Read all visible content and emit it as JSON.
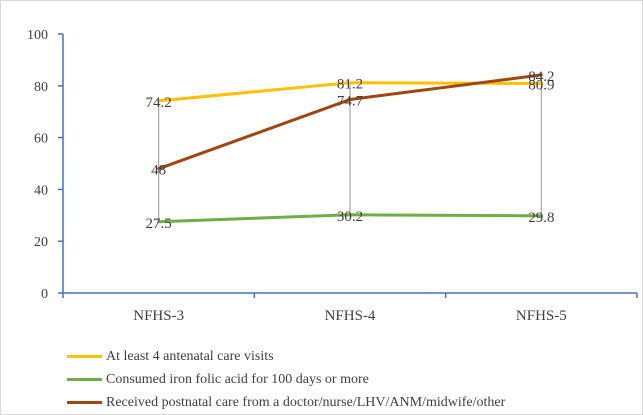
{
  "chart_data": {
    "type": "line",
    "categories": [
      "NFHS-3",
      "NFHS-4",
      "NFHS-5"
    ],
    "ylim": [
      0,
      100
    ],
    "yticks": [
      0,
      20,
      40,
      60,
      80,
      100
    ],
    "grid": false,
    "legend_position": "bottom",
    "series": [
      {
        "name": "At least 4 antenatal care visits",
        "values": [
          74.2,
          81.2,
          80.9
        ],
        "color": "#FFC000",
        "labels": [
          "74.2",
          "81.2",
          "80.9"
        ]
      },
      {
        "name": "Consumed iron folic acid for 100 days or more",
        "values": [
          27.5,
          30.2,
          29.8
        ],
        "color": "#70AD47",
        "labels": [
          "27.5",
          "30.2",
          "29.8"
        ]
      },
      {
        "name": "Received postnatal care from a doctor/nurse/LHV/ANM/midwife/other",
        "values": [
          48,
          74.7,
          84.2
        ],
        "color": "#A0460E",
        "labels": [
          "48",
          "74.7",
          "84.2"
        ]
      }
    ]
  },
  "colors": {
    "axis": "#4472C4",
    "dropline": "#A6A6A6",
    "text": "#404040"
  }
}
